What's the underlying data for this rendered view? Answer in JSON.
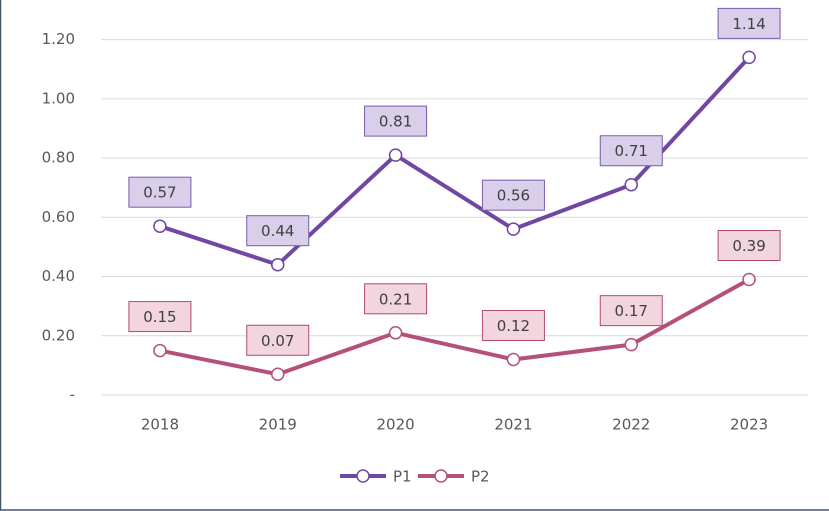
{
  "chart_data": {
    "type": "line",
    "categories": [
      "2018",
      "2019",
      "2020",
      "2021",
      "2022",
      "2023"
    ],
    "series": [
      {
        "name": "P1",
        "color": "#7048a3",
        "label_fill": "#d9cfea",
        "label_stroke": "#7a5aaa",
        "values": [
          0.57,
          0.44,
          0.81,
          0.56,
          0.71,
          1.14
        ]
      },
      {
        "name": "P2",
        "color": "#b5507a",
        "label_fill": "#f3d5de",
        "label_stroke": "#b04a6e",
        "values": [
          0.15,
          0.07,
          0.21,
          0.12,
          0.17,
          0.39
        ]
      }
    ],
    "ylim": [
      0,
      1.3
    ],
    "yticks": [
      {
        "value": 0,
        "label": "-"
      },
      {
        "value": 0.2,
        "label": "0.20"
      },
      {
        "value": 0.4,
        "label": "0.40"
      },
      {
        "value": 0.6,
        "label": "0.60"
      },
      {
        "value": 0.8,
        "label": "0.80"
      },
      {
        "value": 1.0,
        "label": "1.00"
      },
      {
        "value": 1.2,
        "label": "1.20"
      }
    ],
    "grid": true,
    "legend": "bottom"
  }
}
